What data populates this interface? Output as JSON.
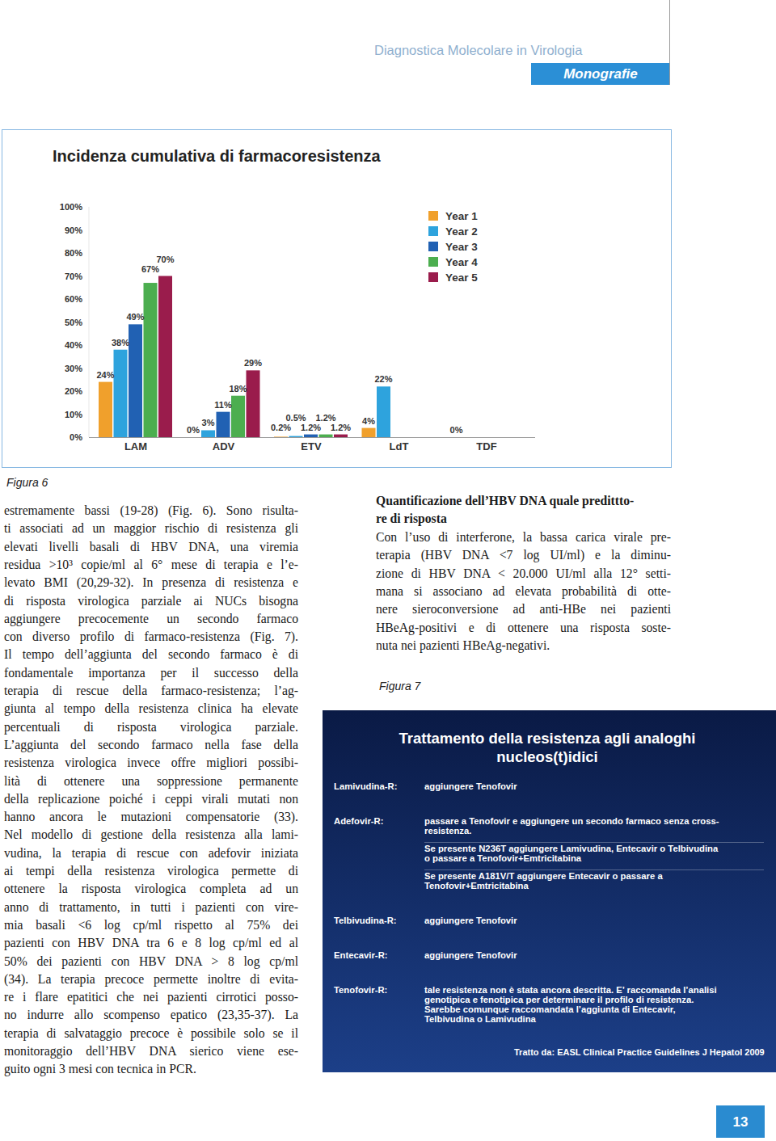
{
  "header": {
    "title": "Diagnostica Molecolare in Virologia",
    "section": "Monografie"
  },
  "chart_data": {
    "type": "bar",
    "title": "Incidenza cumulativa di farmacoresistenza",
    "categories": [
      "LAM",
      "ADV",
      "ETV",
      "LdT",
      "TDF"
    ],
    "series": [
      {
        "name": "Year 1",
        "color": "#f0a02c",
        "values": [
          24,
          0,
          0.2,
          4,
          0
        ],
        "value_labels": [
          "24%",
          "0%",
          "0.2%",
          "4%",
          "0%"
        ]
      },
      {
        "name": "Year 2",
        "color": "#2ea3dd",
        "values": [
          38,
          3,
          0.5,
          22,
          null
        ],
        "value_labels": [
          "38%",
          "3%",
          "0.5%",
          "22%",
          null
        ]
      },
      {
        "name": "Year 3",
        "color": "#2161b3",
        "values": [
          49,
          11,
          1.2,
          null,
          null
        ],
        "value_labels": [
          "49%",
          "11%",
          "1.2%",
          null,
          null
        ]
      },
      {
        "name": "Year 4",
        "color": "#4cae4f",
        "values": [
          67,
          18,
          1.2,
          null,
          null
        ],
        "value_labels": [
          "67%",
          "18%",
          "1.2%",
          null,
          null
        ]
      },
      {
        "name": "Year 5",
        "color": "#9a1c4c",
        "values": [
          70,
          29,
          1.2,
          null,
          null
        ],
        "value_labels": [
          "70%",
          "29%",
          "1.2%",
          null,
          null
        ]
      }
    ],
    "ylim": [
      0,
      100
    ],
    "yticks": [
      {
        "value": 0,
        "label": "0%"
      },
      {
        "value": 10,
        "label": "10%"
      },
      {
        "value": 20,
        "label": "20%"
      },
      {
        "value": 30,
        "label": "30%"
      },
      {
        "value": 40,
        "label": "40%"
      },
      {
        "value": 50,
        "label": "50%"
      },
      {
        "value": 60,
        "label": "60%"
      },
      {
        "value": 70,
        "label": "70%"
      },
      {
        "value": 80,
        "label": "80%"
      },
      {
        "value": 90,
        "label": "90%"
      },
      {
        "value": 100,
        "label": "100%"
      }
    ],
    "grid": false,
    "legend": "top-right",
    "data_labels": true
  },
  "figure6_caption": "Figura 6",
  "left_column": {
    "lines": [
      "estremamente bassi (19-28) (Fig. 6). Sono risulta-",
      "ti associati ad un maggior rischio di resistenza gli",
      "elevati livelli basali di HBV DNA, una viremia",
      "residua >10³ copie/ml al 6° mese di terapia e l’e-",
      "levato BMI (20,29-32). In presenza di resistenza e",
      "di risposta virologica parziale ai NUCs bisogna",
      "aggiungere precocemente un secondo farmaco",
      "con diverso profilo di farmaco-resistenza (Fig. 7).",
      "Il tempo dell’aggiunta del secondo farmaco è di",
      "fondamentale importanza per il successo della",
      "terapia di rescue della farmaco-resistenza; l’ag-",
      "giunta al tempo della resistenza clinica ha elevate",
      "percentuali di risposta virologica parziale.",
      "L’aggiunta del secondo farmaco nella fase della",
      "resistenza virologica invece offre migliori possibi-",
      "lità di ottenere una soppressione permanente",
      "della replicazione poiché i ceppi virali mutati non",
      "hanno ancora le mutazioni compensatorie (33).",
      "Nel modello di gestione della resistenza alla lami-",
      "vudina, la terapia di rescue con adefovir iniziata",
      "ai tempi della resistenza virologica permette di",
      "ottenere la risposta virologica completa ad un",
      "anno di trattamento, in tutti i pazienti con vire-",
      "mia basali <6 log cp/ml rispetto al 75% dei",
      "pazienti con HBV DNA tra 6 e 8 log cp/ml ed al",
      "50% dei pazienti con HBV DNA > 8 log cp/ml",
      "(34). La terapia precoce permette inoltre di evita-",
      "re i flare epatitici che nei pazienti cirrotici posso-",
      "no indurre allo scompenso epatico (23,35-37). La",
      "terapia di salvataggio precoce è possibile solo se il",
      "monitoraggio dell’HBV DNA sierico viene ese-",
      "guito ogni 3 mesi con tecnica in PCR."
    ]
  },
  "right_column": {
    "heading": [
      "Quantificazione dell’HBV DNA quale predittto-",
      "re di risposta"
    ],
    "lines": [
      "Con l’uso di interferone, la bassa carica virale pre-",
      "terapia (HBV DNA <7 log UI/ml) e la diminu-",
      "zione di HBV DNA < 20.000 UI/ml alla 12° setti-",
      "mana si associano ad elevata probabilità di otte-",
      "nere sieroconversione ad anti-HBe nei pazienti",
      "HBeAg-positivi e di ottenere una risposta soste-",
      "nuta nei pazienti HBeAg-negativi."
    ]
  },
  "figure7": {
    "caption": "Figura 7",
    "title": [
      "Trattamento della resistenza agli analoghi",
      "nucleos(t)idici"
    ],
    "rows": [
      {
        "label": "Lamivudina-R:",
        "items": [
          [
            "aggiungere Tenofovir"
          ]
        ]
      },
      {
        "label": "Adefovir-R:",
        "items": [
          [
            "passare a Tenofovir e aggiungere un secondo farmaco senza cross-",
            "resistenza."
          ],
          [
            "Se presente N236T aggiungere Lamivudina, Entecavir o Telbivudina",
            "o passare a Tenofovir+Emtricitabina"
          ],
          [
            "Se presente A181V/T aggiungere Entecavir o passare a",
            "Tenofovir+Emtricitabina"
          ]
        ]
      },
      {
        "label": "Telbivudina-R:",
        "items": [
          [
            "aggiungere Tenofovir"
          ]
        ]
      },
      {
        "label": "Entecavir-R:",
        "items": [
          [
            "aggiungere Tenofovir"
          ]
        ]
      },
      {
        "label": "Tenofovir-R:",
        "items": [
          [
            "tale resistenza non è stata ancora descritta. E’ raccomanda l’analisi",
            "genotipica e fenotipica per determinare il profilo di resistenza.",
            "Sarebbe comunque raccomandata l’aggiunta di Entecavir,",
            "Telbivudina o Lamivudina"
          ]
        ]
      }
    ],
    "source": "Tratto da: EASL Clinical Practice Guidelines J Hepatol 2009"
  },
  "page_number": 13
}
